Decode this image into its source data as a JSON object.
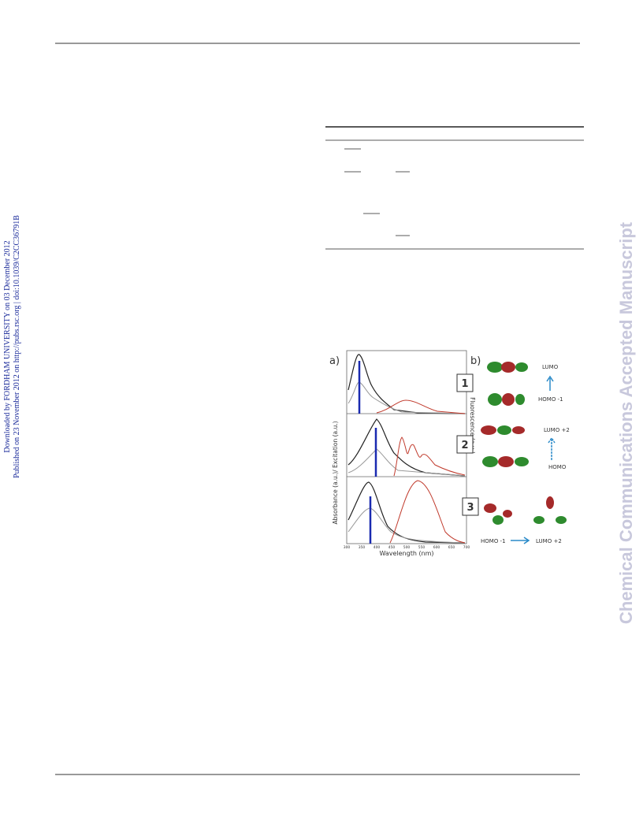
{
  "sidebar": {
    "line1": "Downloaded by FORDHAM UNIVERSITY on 03 December 2012",
    "line2": "Published on 23 November 2012 on http://pubs.rsc.org | doi:10.1039/C2CC36791B"
  },
  "watermark": "Chemical Communications Accepted Manuscript",
  "figure": {
    "panel_a": {
      "label": "a)",
      "x_label": "Wavelength (nm)",
      "y_label": "Absorbance (a.u.)/ Excitation (a.u.)",
      "y2_label": "Fluorescence (a.u.)",
      "x_ticks": [
        300,
        350,
        400,
        450,
        500,
        550,
        600,
        650,
        700
      ]
    },
    "panel_b": {
      "label": "b)",
      "compounds": [
        {
          "number": "1",
          "upper": "LUMO",
          "lower": "HOMO -1"
        },
        {
          "number": "2",
          "upper": "LUMO +2",
          "lower": "HOMO"
        },
        {
          "number": "3",
          "left": "HOMO -1",
          "right": "LUMO +2"
        }
      ]
    }
  }
}
